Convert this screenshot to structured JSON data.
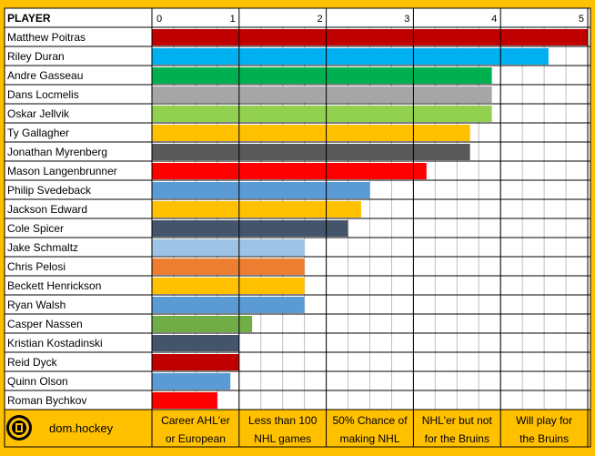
{
  "header": {
    "player_label": "PLAYER"
  },
  "brand": {
    "logo": "bruins-logo",
    "site": "dom.hockey"
  },
  "categories": [
    [
      "Career AHL'er",
      "or European"
    ],
    [
      "Less than 100",
      "NHL games"
    ],
    [
      "50% Chance of",
      "making NHL"
    ],
    [
      "NHL'er but not",
      "for the Bruins"
    ],
    [
      "Will play for",
      "the Bruins"
    ]
  ],
  "colors": {
    "frame": "#ffc000",
    "grid_minor": "#bfbfbf",
    "grid_major": "#000000"
  },
  "chart_data": {
    "type": "bar",
    "orientation": "horizontal",
    "xlim": [
      0,
      5
    ],
    "xticks": [
      "0",
      "1",
      "2",
      "3",
      "4",
      "5"
    ],
    "grid": true,
    "players": [
      {
        "name": "Matthew Poitras",
        "value": 5.0,
        "color": "#c00000"
      },
      {
        "name": "Riley Duran",
        "value": 4.55,
        "color": "#00b0f0"
      },
      {
        "name": "Andre Gasseau",
        "value": 3.9,
        "color": "#00b050"
      },
      {
        "name": "Dans Locmelis",
        "value": 3.9,
        "color": "#a6a6a6"
      },
      {
        "name": "Oskar Jellvik",
        "value": 3.9,
        "color": "#92d050"
      },
      {
        "name": "Ty Gallagher",
        "value": 3.65,
        "color": "#ffc000"
      },
      {
        "name": "Jonathan Myrenberg",
        "value": 3.65,
        "color": "#595959"
      },
      {
        "name": "Mason Langenbrunner",
        "value": 3.15,
        "color": "#ff0000"
      },
      {
        "name": "Philip Svedeback",
        "value": 2.5,
        "color": "#5b9bd5"
      },
      {
        "name": "Jackson Edward",
        "value": 2.4,
        "color": "#ffc000"
      },
      {
        "name": "Cole Spicer",
        "value": 2.25,
        "color": "#44546a"
      },
      {
        "name": "Jake Schmaltz",
        "value": 1.75,
        "color": "#9dc3e6"
      },
      {
        "name": "Chris Pelosi",
        "value": 1.75,
        "color": "#ed7d31"
      },
      {
        "name": "Beckett Henrickson",
        "value": 1.75,
        "color": "#ffc000"
      },
      {
        "name": "Ryan Walsh",
        "value": 1.75,
        "color": "#5b9bd5"
      },
      {
        "name": "Casper Nassen",
        "value": 1.15,
        "color": "#70ad47"
      },
      {
        "name": "Kristian Kostadinski",
        "value": 1.0,
        "color": "#44546a"
      },
      {
        "name": "Reid Dyck",
        "value": 1.0,
        "color": "#c00000"
      },
      {
        "name": "Quinn Olson",
        "value": 0.9,
        "color": "#5b9bd5"
      },
      {
        "name": "Roman Bychkov",
        "value": 0.75,
        "color": "#ff0000"
      }
    ]
  }
}
